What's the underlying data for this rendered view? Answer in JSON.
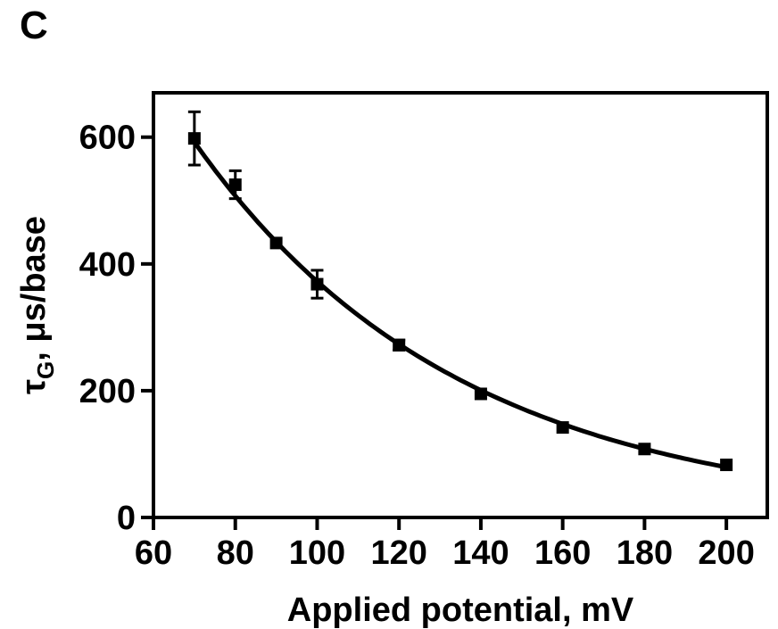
{
  "panel_label": "C",
  "chart_data": {
    "type": "scatter",
    "title": "",
    "xlabel": "Applied potential, mV",
    "ylabel": {
      "main": "τ",
      "sub": "G",
      "rest": ", μs/base"
    },
    "xlim": [
      60,
      210
    ],
    "ylim": [
      0,
      670
    ],
    "xticks": [
      60,
      80,
      100,
      120,
      140,
      160,
      180,
      200
    ],
    "yticks": [
      0,
      200,
      400,
      600
    ],
    "grid": false,
    "legend": "none",
    "series": [
      {
        "points": [
          {
            "x": 70,
            "y": 598,
            "err": 42
          },
          {
            "x": 80,
            "y": 525,
            "err": 22
          },
          {
            "x": 90,
            "y": 433,
            "err": 0
          },
          {
            "x": 100,
            "y": 368,
            "err": 22
          },
          {
            "x": 120,
            "y": 272,
            "err": 8
          },
          {
            "x": 140,
            "y": 195,
            "err": 0
          },
          {
            "x": 160,
            "y": 142,
            "err": 0
          },
          {
            "x": 180,
            "y": 108,
            "err": 0
          },
          {
            "x": 200,
            "y": 83,
            "err": 0
          }
        ],
        "color": "#000000"
      }
    ],
    "fit_curve": true
  }
}
